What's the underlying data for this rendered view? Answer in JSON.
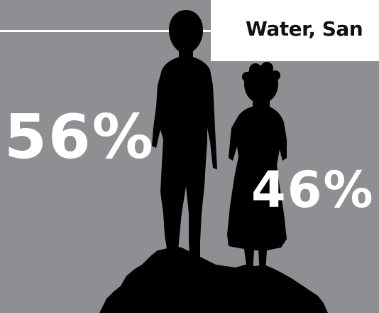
{
  "title": "Water, San",
  "stats": {
    "left_value": "56%",
    "right_value": "46%"
  },
  "colors": {
    "background": "#8d8f93",
    "silhouette": "#000000",
    "text": "#ffffff",
    "title_box": "#ffffff",
    "title_text": "#111111"
  },
  "image": {
    "figures": "silhouette-boy-and-girl-icon"
  }
}
